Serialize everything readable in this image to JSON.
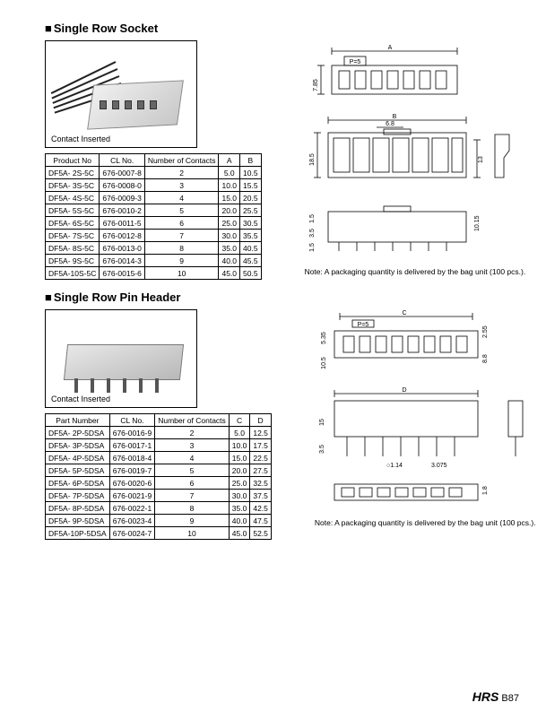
{
  "footer": {
    "brand": "HRS",
    "page": "B87"
  },
  "section1": {
    "title": "Single Row Socket",
    "caption": "Contact Inserted",
    "note": "Note: A packaging quantity is delivered by the bag unit  (100 pcs.).",
    "table": {
      "columns": [
        "Product No",
        "CL No.",
        "Number of Contacts",
        "A",
        "B"
      ],
      "rows": [
        [
          "DF5A-  2S-5C",
          "676-0007-8",
          "2",
          "5.0",
          "10.5"
        ],
        [
          "DF5A-  3S-5C",
          "676-0008-0",
          "3",
          "10.0",
          "15.5"
        ],
        [
          "DF5A-  4S-5C",
          "676-0009-3",
          "4",
          "15.0",
          "20.5"
        ],
        [
          "DF5A-  5S-5C",
          "676-0010-2",
          "5",
          "20.0",
          "25.5"
        ],
        [
          "DF5A-  6S-5C",
          "676-0011-5",
          "6",
          "25.0",
          "30.5"
        ],
        [
          "DF5A-  7S-5C",
          "676-0012-8",
          "7",
          "30.0",
          "35.5"
        ],
        [
          "DF5A-  8S-5C",
          "676-0013-0",
          "8",
          "35.0",
          "40.5"
        ],
        [
          "DF5A-  9S-5C",
          "676-0014-3",
          "9",
          "40.0",
          "45.5"
        ],
        [
          "DF5A-10S-5C",
          "676-0015-6",
          "10",
          "45.0",
          "50.5"
        ]
      ]
    },
    "dims": {
      "top_a": "A",
      "top_p": "P=5",
      "h1": "7.85",
      "b": "B",
      "p68": "6.8",
      "h2": "18.5",
      "h3": "13",
      "h4": "10.15",
      "w1": "1.5",
      "w2": "3.5",
      "w3": "1.5"
    }
  },
  "section2": {
    "title": "Single Row Pin Header",
    "caption": "Contact Inserted",
    "note": "Note: A packaging quantity is delivered by the bag unit  (100 pcs.).",
    "table": {
      "columns": [
        "Part Number",
        "CL No.",
        "Number of Contacts",
        "C",
        "D"
      ],
      "rows": [
        [
          "DF5A-  2P-5DSA",
          "676-0016-9",
          "2",
          "5.0",
          "12.5"
        ],
        [
          "DF5A-  3P-5DSA",
          "676-0017-1",
          "3",
          "10.0",
          "17.5"
        ],
        [
          "DF5A-  4P-5DSA",
          "676-0018-4",
          "4",
          "15.0",
          "22.5"
        ],
        [
          "DF5A-  5P-5DSA",
          "676-0019-7",
          "5",
          "20.0",
          "27.5"
        ],
        [
          "DF5A-  6P-5DSA",
          "676-0020-6",
          "6",
          "25.0",
          "32.5"
        ],
        [
          "DF5A-  7P-5DSA",
          "676-0021-9",
          "7",
          "30.0",
          "37.5"
        ],
        [
          "DF5A-  8P-5DSA",
          "676-0022-1",
          "8",
          "35.0",
          "42.5"
        ],
        [
          "DF5A-  9P-5DSA",
          "676-0023-4",
          "9",
          "40.0",
          "47.5"
        ],
        [
          "DF5A-10P-5DSA",
          "676-0024-7",
          "10",
          "45.0",
          "52.5"
        ]
      ]
    },
    "dims": {
      "c": "C",
      "p5": "P=5",
      "h1": "5.35",
      "h2": "2.55",
      "h3": "10.5",
      "h4": "8.8",
      "d": "D",
      "h5": "15",
      "h6": "3.5",
      "d114": "○1.14",
      "d3075": "3.075",
      "h7": "1.8"
    }
  }
}
